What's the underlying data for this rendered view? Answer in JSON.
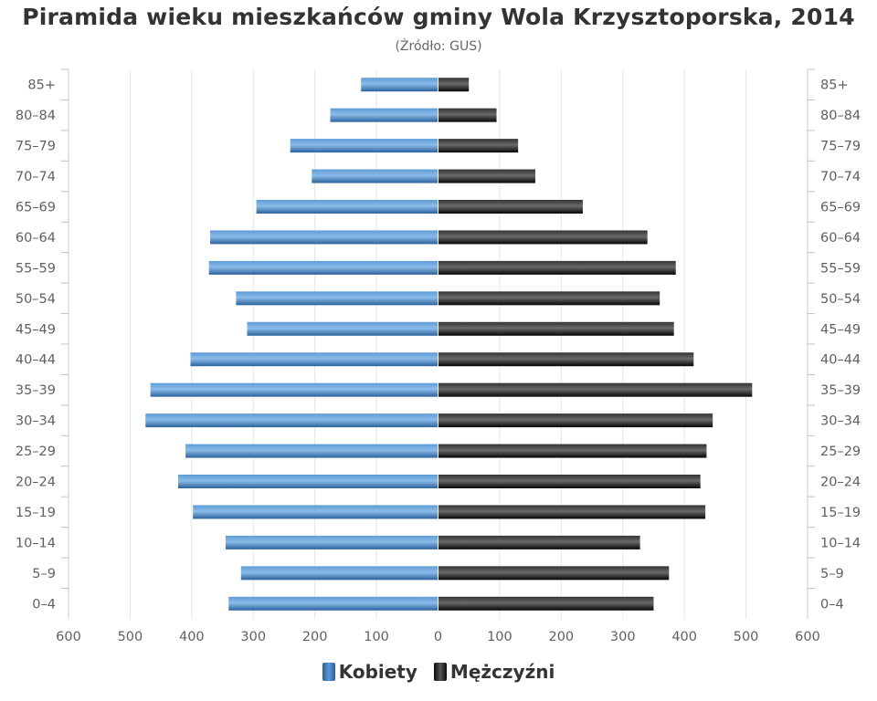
{
  "chart_data": {
    "type": "bar",
    "orientation": "horizontal-pyramid",
    "title": "Piramida wieku mieszkańców gminy Wola Krzysztoporska, 2014",
    "subtitle": "(Źródło: GUS)",
    "categories": [
      "85+",
      "80–84",
      "75–79",
      "70–74",
      "65–69",
      "60–64",
      "55–59",
      "50–54",
      "45–49",
      "40–44",
      "35–39",
      "30–34",
      "25–29",
      "20–24",
      "15–19",
      "10–14",
      "5–9",
      "0–4"
    ],
    "series": [
      {
        "name": "Kobiety",
        "color": "#3d7ab8",
        "values": [
          125,
          175,
          240,
          205,
          295,
          370,
          372,
          328,
          310,
          402,
          467,
          475,
          410,
          422,
          398,
          345,
          320,
          340
        ]
      },
      {
        "name": "Mężczyźni",
        "color": "#1a1a1a",
        "values": [
          50,
          95,
          130,
          158,
          235,
          340,
          386,
          360,
          383,
          415,
          510,
          446,
          436,
          426,
          434,
          328,
          375,
          350
        ]
      }
    ],
    "xlim": [
      -600,
      600
    ],
    "xticks": [
      -600,
      -500,
      -400,
      -300,
      -200,
      -100,
      0,
      100,
      200,
      300,
      400,
      500,
      600
    ],
    "xtick_labels": [
      "600",
      "500",
      "400",
      "300",
      "200",
      "100",
      "0",
      "100",
      "200",
      "300",
      "400",
      "500",
      "600"
    ],
    "grid": true,
    "legend_position": "bottom-center"
  },
  "legend": {
    "items": [
      {
        "label": "Kobiety"
      },
      {
        "label": "Mężczyźni"
      }
    ]
  }
}
